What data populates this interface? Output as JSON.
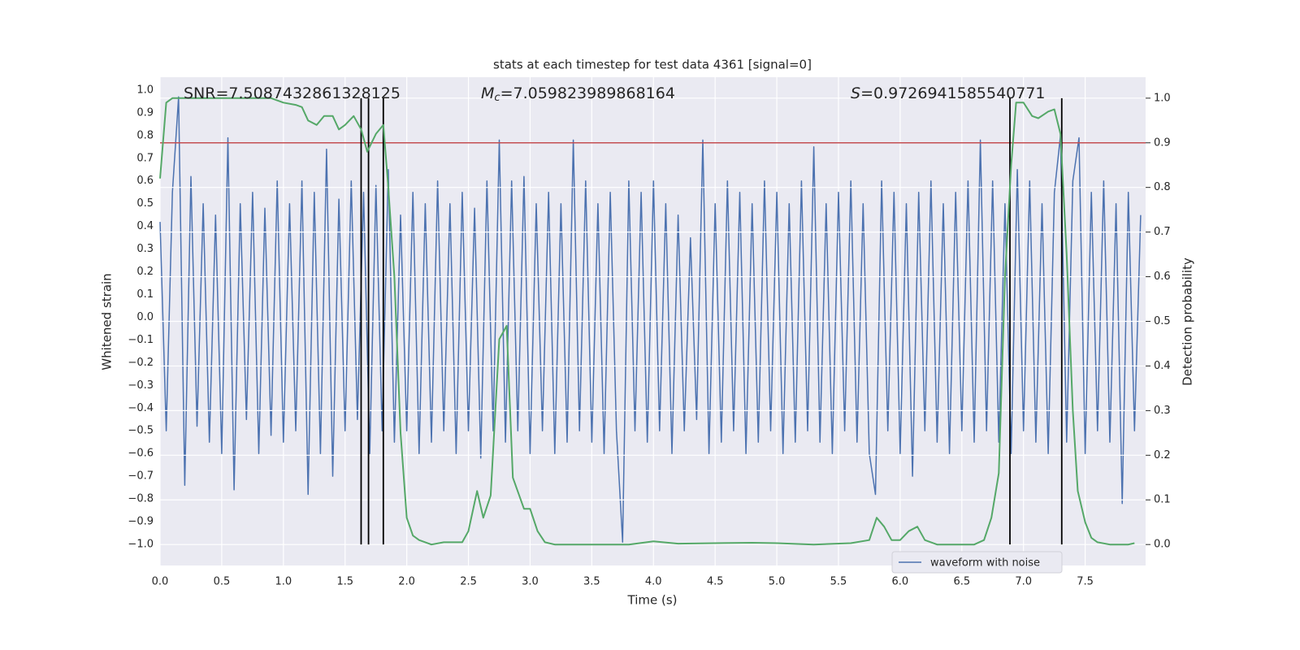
{
  "chart_data": {
    "type": "line",
    "title": "stats at each timestep for test data 4361 [signal=0]",
    "xlabel": "Time (s)",
    "ylabel": "Whitened strain",
    "y2label": "Detection probability",
    "annotations": [
      {
        "text": "SNR=7.5087432861328125"
      },
      {
        "symbol": "M",
        "subscript": "c",
        "text": "=7.059823989868164"
      },
      {
        "symbol": "S",
        "text": "=0.9726941585540771"
      }
    ],
    "xlim": [
      0,
      7.99
    ],
    "ylim": [
      -1.093,
      1.057
    ],
    "y2lim": [
      -0.047,
      1.047
    ],
    "xticks": [
      {
        "value": 0,
        "label": "0.0"
      },
      {
        "value": 0.5,
        "label": "0.5"
      },
      {
        "value": 1,
        "label": "1.0"
      },
      {
        "value": 1.5,
        "label": "1.5"
      },
      {
        "value": 2,
        "label": "2.0"
      },
      {
        "value": 2.5,
        "label": "2.5"
      },
      {
        "value": 3,
        "label": "3.0"
      },
      {
        "value": 3.5,
        "label": "3.5"
      },
      {
        "value": 4,
        "label": "4.0"
      },
      {
        "value": 4.5,
        "label": "4.5"
      },
      {
        "value": 5,
        "label": "5.0"
      },
      {
        "value": 5.5,
        "label": "5.5"
      },
      {
        "value": 6,
        "label": "6.0"
      },
      {
        "value": 6.5,
        "label": "6.5"
      },
      {
        "value": 7,
        "label": "7.0"
      },
      {
        "value": 7.5,
        "label": "7.5"
      }
    ],
    "yticks": [
      {
        "value": -1,
        "label": "−1.0"
      },
      {
        "value": -0.9,
        "label": "−0.9"
      },
      {
        "value": -0.8,
        "label": "−0.8"
      },
      {
        "value": -0.7,
        "label": "−0.7"
      },
      {
        "value": -0.6,
        "label": "−0.6"
      },
      {
        "value": -0.5,
        "label": "−0.5"
      },
      {
        "value": -0.4,
        "label": "−0.4"
      },
      {
        "value": -0.3,
        "label": "−0.3"
      },
      {
        "value": -0.2,
        "label": "−0.2"
      },
      {
        "value": -0.1,
        "label": "−0.1"
      },
      {
        "value": 0,
        "label": "0.0"
      },
      0.1,
      0.2,
      0.3,
      0.4,
      0.5,
      0.6,
      0.7,
      0.8,
      0.9,
      {
        "value": 1,
        "label": "1.0"
      }
    ],
    "y2ticks": [
      {
        "value": 0,
        "label": "0.0"
      },
      0.1,
      0.2,
      0.3,
      0.4,
      0.5,
      0.6,
      0.7,
      0.8,
      0.9,
      {
        "value": 1,
        "label": "1.0"
      }
    ],
    "grid": {
      "x": true,
      "y": false,
      "y2": true
    },
    "legend": "lower right",
    "series": [
      {
        "name": "waveform with noise",
        "color": "#4c72b0",
        "x": [
          0,
          0.05,
          0.1,
          0.15,
          0.2,
          0.25,
          0.3,
          0.35,
          0.4,
          0.45,
          0.5,
          0.55,
          0.6,
          0.65,
          0.7,
          0.75,
          0.8,
          0.85,
          0.9,
          0.95,
          1,
          1.05,
          1.1,
          1.15,
          1.2,
          1.25,
          1.3,
          1.35,
          1.4,
          1.45,
          1.5,
          1.55,
          1.6,
          1.65,
          1.7,
          1.75,
          1.8,
          1.85,
          1.9,
          1.95,
          2,
          2.05,
          2.1,
          2.15,
          2.2,
          2.25,
          2.3,
          2.35,
          2.4,
          2.45,
          2.5,
          2.55,
          2.6,
          2.65,
          2.7,
          2.75,
          2.8,
          2.85,
          2.9,
          2.95,
          3,
          3.05,
          3.1,
          3.15,
          3.2,
          3.25,
          3.3,
          3.35,
          3.4,
          3.45,
          3.5,
          3.55,
          3.6,
          3.65,
          3.7,
          3.75,
          3.8,
          3.85,
          3.9,
          3.95,
          4,
          4.05,
          4.1,
          4.15,
          4.2,
          4.25,
          4.3,
          4.35,
          4.4,
          4.45,
          4.5,
          4.55,
          4.6,
          4.65,
          4.7,
          4.75,
          4.8,
          4.85,
          4.9,
          4.95,
          5,
          5.05,
          5.1,
          5.15,
          5.2,
          5.25,
          5.3,
          5.35,
          5.4,
          5.45,
          5.5,
          5.55,
          5.6,
          5.65,
          5.7,
          5.75,
          5.8,
          5.85,
          5.9,
          5.95,
          6,
          6.05,
          6.1,
          6.15,
          6.2,
          6.25,
          6.3,
          6.35,
          6.4,
          6.45,
          6.5,
          6.55,
          6.6,
          6.65,
          6.7,
          6.75,
          6.8,
          6.85,
          6.9,
          6.95,
          7,
          7.05,
          7.1,
          7.15,
          7.2,
          7.25,
          7.3,
          7.35,
          7.4,
          7.45,
          7.5,
          7.55,
          7.6,
          7.65,
          7.7,
          7.75,
          7.8,
          7.85,
          7.9,
          7.95
        ],
        "values": [
          0.42,
          -0.5,
          0.55,
          0.97,
          -0.74,
          0.62,
          -0.48,
          0.5,
          -0.55,
          0.45,
          -0.6,
          0.79,
          -0.76,
          0.5,
          -0.45,
          0.55,
          -0.6,
          0.48,
          -0.52,
          0.6,
          -0.55,
          0.5,
          -0.5,
          0.6,
          -0.78,
          0.55,
          -0.6,
          0.74,
          -0.7,
          0.52,
          -0.5,
          0.6,
          -0.45,
          0.55,
          -0.6,
          0.58,
          -0.5,
          0.65,
          -0.55,
          0.45,
          -0.5,
          0.55,
          -0.6,
          0.5,
          -0.55,
          0.6,
          -0.5,
          0.5,
          -0.6,
          0.55,
          -0.5,
          0.48,
          -0.62,
          0.6,
          -0.5,
          0.78,
          -0.55,
          0.6,
          -0.5,
          0.62,
          -0.6,
          0.5,
          -0.5,
          0.55,
          -0.6,
          0.5,
          -0.55,
          0.78,
          -0.5,
          0.6,
          -0.55,
          0.5,
          -0.6,
          0.55,
          -0.5,
          -0.99,
          0.6,
          -0.5,
          0.55,
          -0.55,
          0.6,
          -0.5,
          0.5,
          -0.6,
          0.45,
          -0.5,
          0.35,
          -0.45,
          0.78,
          -0.6,
          0.5,
          -0.55,
          0.6,
          -0.5,
          0.55,
          -0.6,
          0.5,
          -0.55,
          0.6,
          -0.5,
          0.55,
          -0.6,
          0.5,
          -0.55,
          0.6,
          -0.5,
          0.75,
          -0.55,
          0.5,
          -0.6,
          0.55,
          -0.5,
          0.6,
          -0.55,
          0.5,
          -0.6,
          -0.78,
          0.6,
          -0.5,
          0.55,
          -0.6,
          0.5,
          -0.7,
          0.55,
          -0.5,
          0.6,
          -0.55,
          0.5,
          -0.6,
          0.55,
          -0.5,
          0.6,
          -0.55,
          0.78,
          -0.5,
          0.6,
          -0.55,
          0.5,
          -0.6,
          0.65,
          -0.5,
          0.6,
          -0.55,
          0.5,
          -0.6,
          0.55,
          0.8,
          -0.55,
          0.6,
          0.79,
          -0.6,
          0.55,
          -0.5,
          0.6,
          -0.55,
          0.5,
          -0.82,
          0.55,
          -0.5,
          0.45
        ]
      },
      {
        "color": "#55a868",
        "axis": "y2",
        "x": [
          0,
          0.05,
          0.1,
          0.9,
          1,
          1.1,
          1.15,
          1.2,
          1.27,
          1.33,
          1.4,
          1.45,
          1.5,
          1.57,
          1.63,
          1.68,
          1.75,
          1.81,
          1.85,
          1.9,
          1.95,
          2,
          2.05,
          2.1,
          2.2,
          2.3,
          2.45,
          2.5,
          2.57,
          2.62,
          2.68,
          2.75,
          2.81,
          2.86,
          2.95,
          3,
          3.06,
          3.12,
          3.2,
          3.5,
          3.8,
          4,
          4.2,
          4.5,
          4.8,
          5,
          5.3,
          5.6,
          5.75,
          5.81,
          5.87,
          5.93,
          6,
          6.07,
          6.14,
          6.2,
          6.3,
          6.6,
          6.68,
          6.74,
          6.8,
          6.85,
          6.9,
          6.94,
          7,
          7.07,
          7.12,
          7.2,
          7.25,
          7.3,
          7.35,
          7.4,
          7.44,
          7.5,
          7.55,
          7.6,
          7.7,
          7.85,
          7.9
        ],
        "values": [
          0.82,
          0.99,
          1,
          1,
          0.99,
          0.985,
          0.98,
          0.95,
          0.94,
          0.96,
          0.96,
          0.93,
          0.94,
          0.96,
          0.93,
          0.88,
          0.92,
          0.94,
          0.8,
          0.6,
          0.25,
          0.06,
          0.02,
          0.01,
          0,
          0.005,
          0.005,
          0.03,
          0.12,
          0.06,
          0.11,
          0.46,
          0.49,
          0.15,
          0.08,
          0.08,
          0.03,
          0.005,
          0,
          0,
          0,
          0.007,
          0.002,
          0.003,
          0.004,
          0.003,
          0,
          0.003,
          0.01,
          0.06,
          0.04,
          0.01,
          0.01,
          0.03,
          0.04,
          0.01,
          0,
          0,
          0.01,
          0.06,
          0.16,
          0.6,
          0.85,
          0.99,
          0.99,
          0.96,
          0.955,
          0.97,
          0.975,
          0.92,
          0.65,
          0.3,
          0.12,
          0.05,
          0.015,
          0.005,
          0,
          0,
          0.003
        ]
      }
    ],
    "hline": {
      "value": 0.9,
      "axis": "y2",
      "color": "#c44e52"
    },
    "vlines": {
      "x": [
        1.63,
        1.69,
        1.81,
        6.89,
        7.31
      ],
      "ymin": 0,
      "ymax": 1,
      "axis": "y2",
      "color": "#000000"
    }
  }
}
